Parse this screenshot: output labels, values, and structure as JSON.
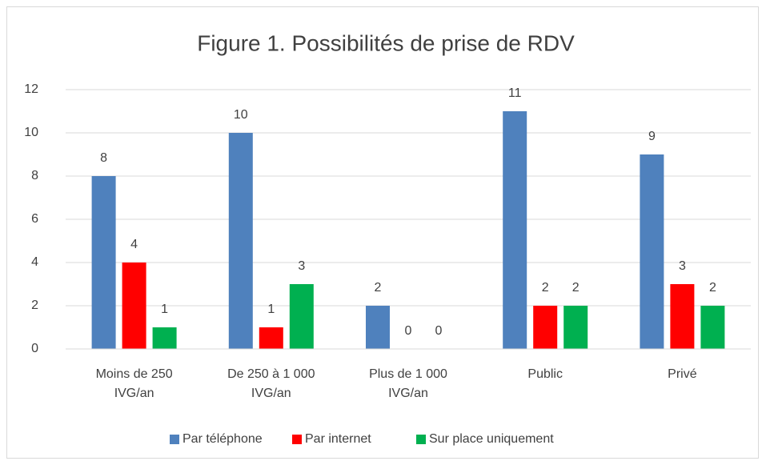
{
  "chart_data": {
    "type": "bar",
    "title": "Figure 1. Possibilités de prise de RDV",
    "categories": [
      "Moins de 250 IVG/an",
      "De 250 à 1 000 IVG/an",
      "Plus de 1 000 IVG/an",
      "Public",
      "Privé"
    ],
    "series": [
      {
        "name": "Par téléphone",
        "color": "#4f81bd",
        "values": [
          8,
          10,
          2,
          11,
          9
        ]
      },
      {
        "name": "Par internet",
        "color": "#ff0000",
        "values": [
          4,
          1,
          0,
          2,
          3
        ]
      },
      {
        "name": "Sur place uniquement",
        "color": "#00b050",
        "values": [
          1,
          3,
          0,
          2,
          2
        ]
      }
    ],
    "ylim": [
      0,
      12
    ],
    "yticks": [
      0,
      2,
      4,
      6,
      8,
      10,
      12
    ],
    "grid": true,
    "legend": "bottom"
  }
}
